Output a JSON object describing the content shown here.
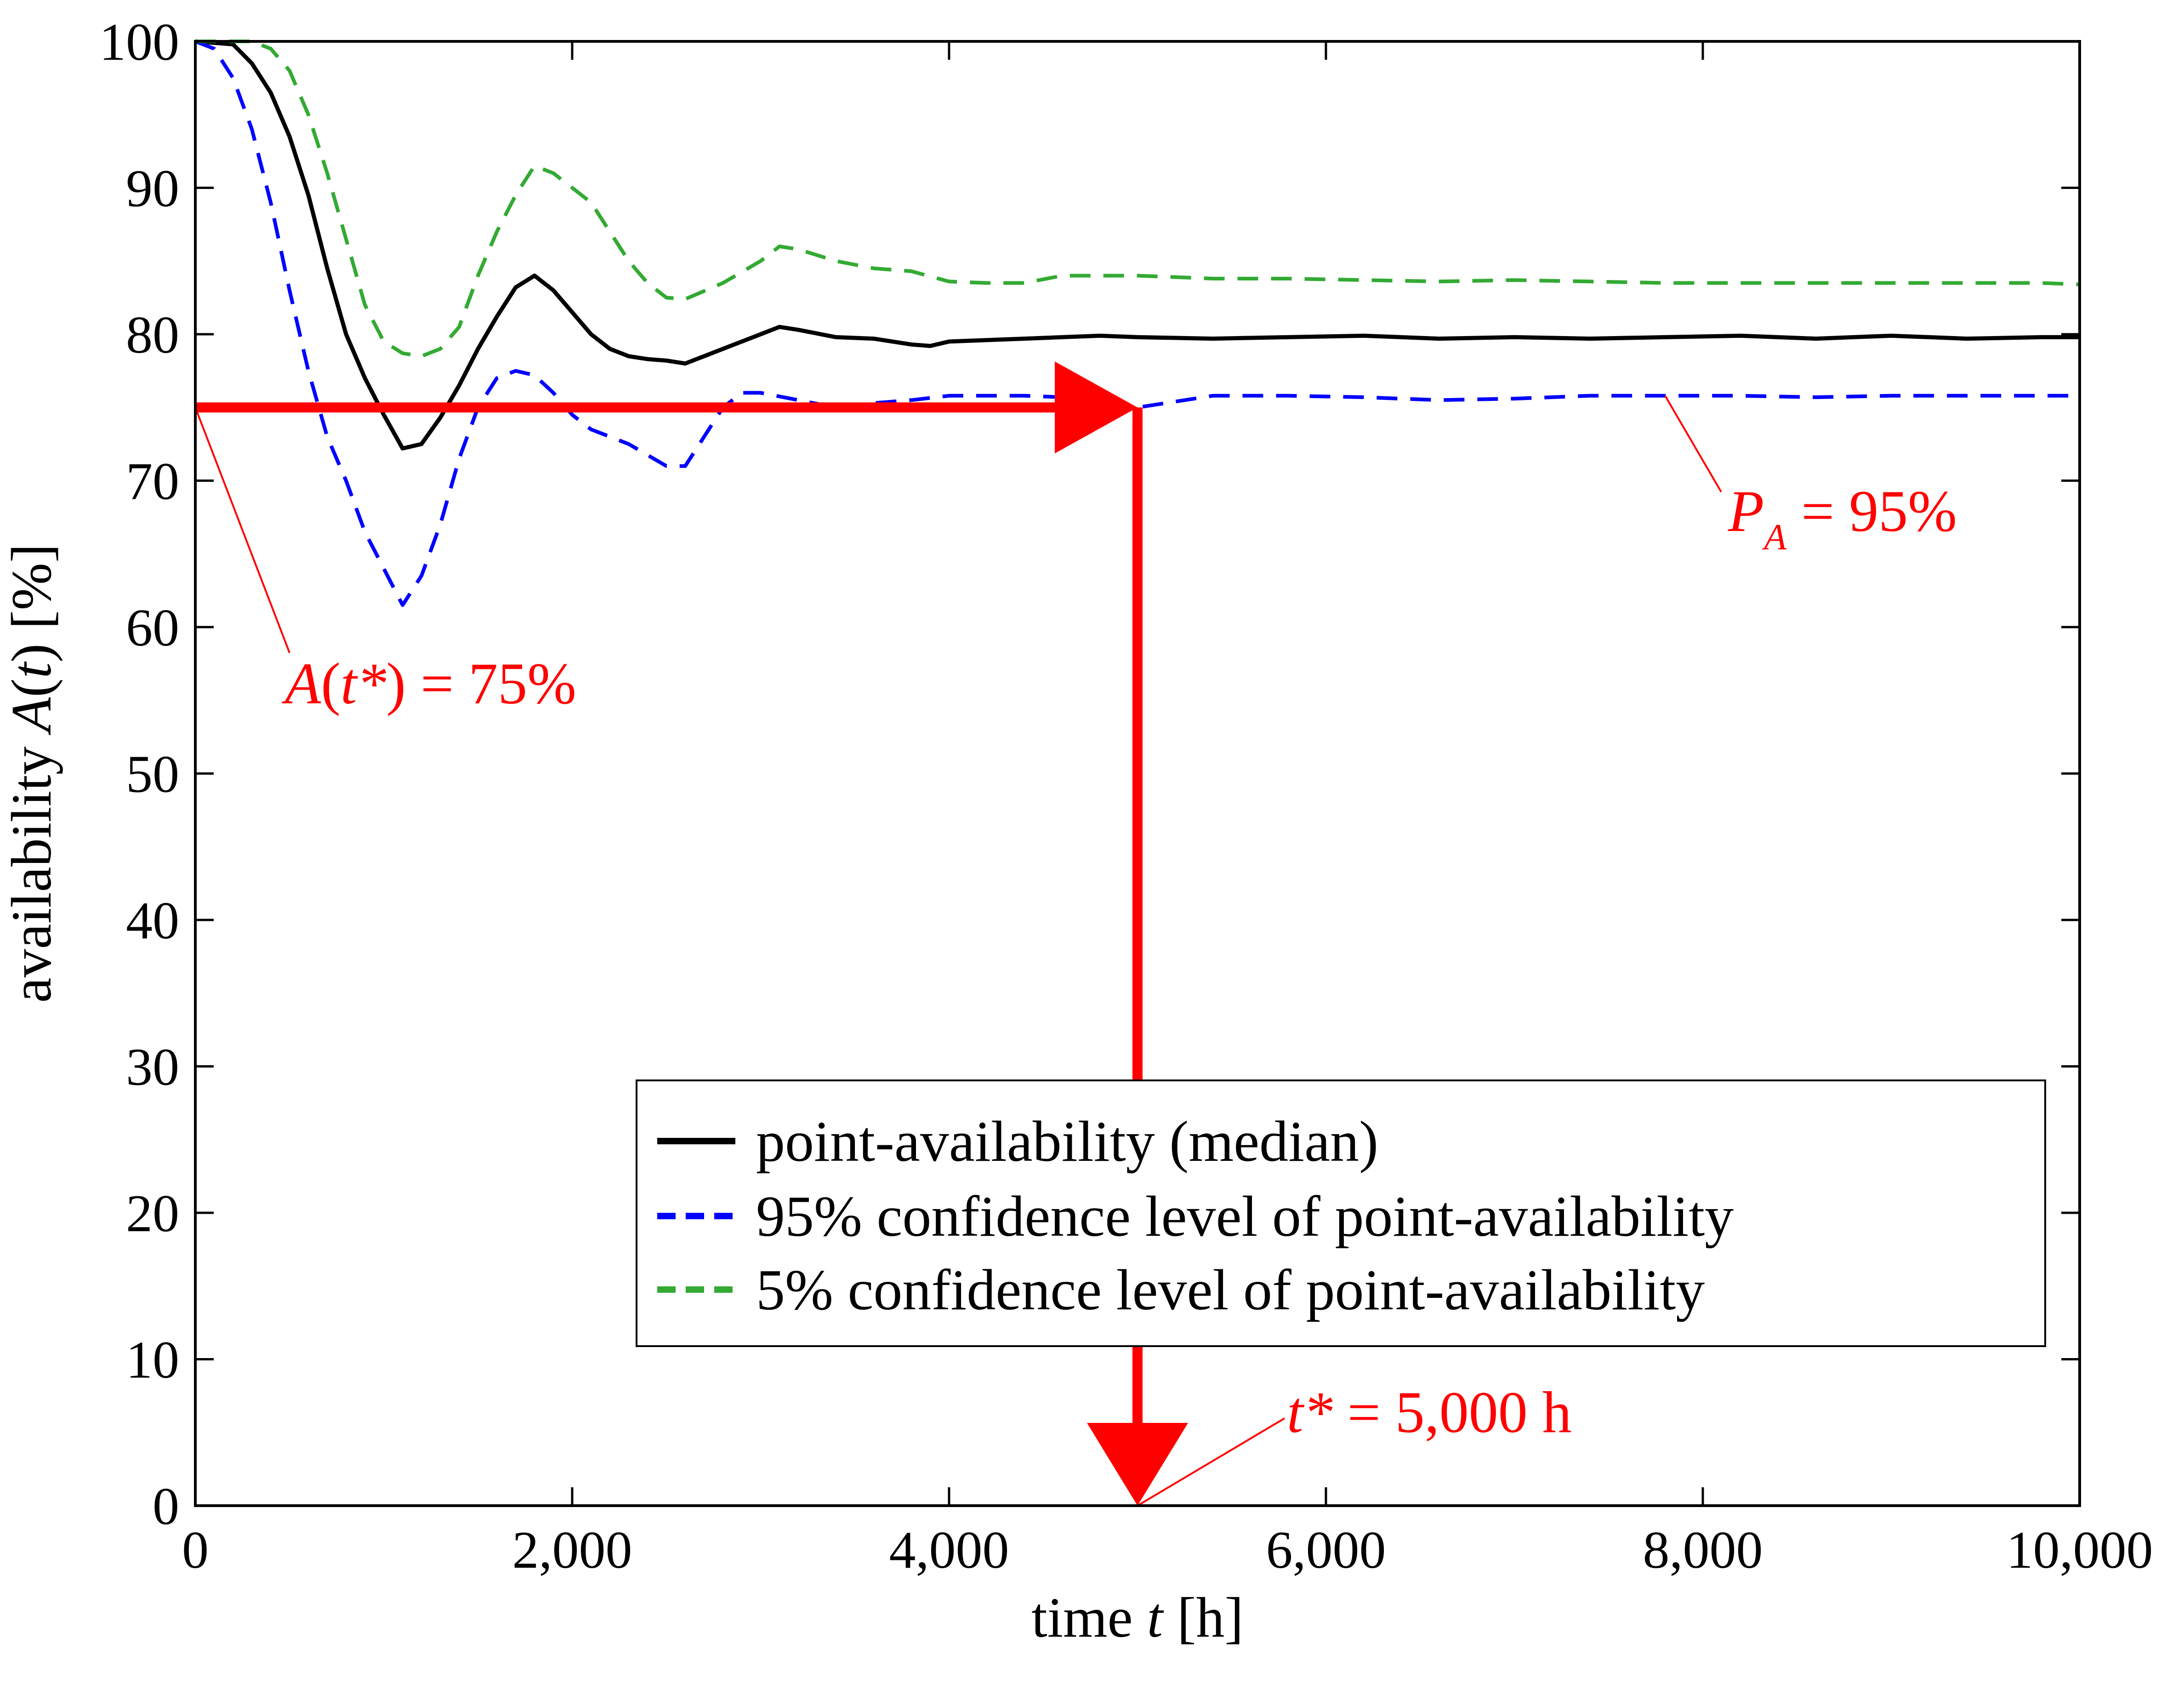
{
  "chart_data": {
    "type": "line",
    "xlabel": {
      "prefix": "time ",
      "var": "t",
      "suffix": " [h]"
    },
    "ylabel": {
      "prefix": "availability ",
      "var": "A",
      "open": "(",
      "arg": "t",
      "close": ")",
      "suffix": " [%]"
    },
    "xlim": [
      0,
      10000
    ],
    "ylim": [
      0,
      100
    ],
    "xticks": [
      0,
      2000,
      4000,
      6000,
      8000,
      10000
    ],
    "xtick_labels": [
      "0",
      "2,000",
      "4,000",
      "6,000",
      "8,000",
      "10,000"
    ],
    "yticks": [
      0,
      10,
      20,
      30,
      40,
      50,
      60,
      70,
      80,
      90,
      100
    ],
    "ytick_labels": [
      "0",
      "10",
      "20",
      "30",
      "40",
      "50",
      "60",
      "70",
      "80",
      "90",
      "100"
    ],
    "grid": false,
    "legend": {
      "placement": "lower-right",
      "entries": [
        {
          "label": "point-availability (median)",
          "color": "#000000",
          "dash": "solid"
        },
        {
          "label": "95% confidence level of point-availability",
          "color": "#0000ff",
          "dash": "dashed"
        },
        {
          "label": "5% confidence level of point-availability",
          "color": "#33aa33",
          "dash": "dashed"
        }
      ]
    },
    "series": [
      {
        "name": "point-availability (median)",
        "color": "#000000",
        "x": [
          0,
          200,
          300,
          400,
          500,
          600,
          700,
          800,
          900,
          1000,
          1100,
          1200,
          1300,
          1400,
          1500,
          1600,
          1700,
          1800,
          1900,
          2000,
          2100,
          2200,
          2300,
          2400,
          2500,
          2600,
          2800,
          3000,
          3100,
          3200,
          3400,
          3600,
          3800,
          3900,
          4000,
          4200,
          4400,
          4600,
          4800,
          5000,
          5400,
          5800,
          6200,
          6600,
          7000,
          7400,
          7800,
          8200,
          8600,
          9000,
          9400,
          9800,
          10000
        ],
        "y": [
          100,
          99.8,
          98.5,
          96.5,
          93.5,
          89.5,
          84.5,
          80,
          77,
          74.5,
          72.2,
          72.5,
          74.3,
          76.5,
          79,
          81.2,
          83.2,
          84,
          83,
          81.5,
          80,
          79,
          78.5,
          78.3,
          78.2,
          78,
          79,
          80,
          80.5,
          80.3,
          79.8,
          79.7,
          79.3,
          79.2,
          79.5,
          79.6,
          79.7,
          79.8,
          79.9,
          79.8,
          79.7,
          79.8,
          79.9,
          79.7,
          79.8,
          79.7,
          79.8,
          79.9,
          79.7,
          79.9,
          79.7,
          79.8,
          79.8
        ]
      },
      {
        "name": "95% confidence level of point-availability",
        "color": "#0000ff",
        "x": [
          0,
          100,
          200,
          300,
          400,
          500,
          600,
          700,
          800,
          900,
          1000,
          1100,
          1200,
          1300,
          1400,
          1500,
          1600,
          1700,
          1800,
          1900,
          2000,
          2100,
          2300,
          2500,
          2600,
          2700,
          2800,
          2900,
          3000,
          3200,
          3400,
          3600,
          3800,
          4000,
          4200,
          4400,
          4600,
          4800,
          5000,
          5400,
          5800,
          6200,
          6600,
          7000,
          7400,
          7800,
          8200,
          8600,
          9000,
          9400,
          9800,
          10000
        ],
        "y": [
          100,
          99.5,
          97.5,
          94,
          89,
          83,
          77.5,
          73,
          70,
          66.5,
          64,
          61.5,
          63.5,
          67,
          71.5,
          75,
          77,
          77.5,
          77.2,
          76,
          74.5,
          73.5,
          72.5,
          71,
          71,
          73,
          75,
          76,
          76,
          75.5,
          75,
          75.3,
          75.5,
          75.8,
          75.8,
          75.8,
          75.7,
          75.6,
          75,
          75.8,
          75.8,
          75.7,
          75.5,
          75.6,
          75.8,
          75.8,
          75.8,
          75.7,
          75.8,
          75.8,
          75.8,
          75.8
        ]
      },
      {
        "name": "5% confidence level of point-availability",
        "color": "#33aa33",
        "x": [
          0,
          100,
          200,
          300,
          400,
          500,
          600,
          700,
          800,
          900,
          1000,
          1100,
          1200,
          1300,
          1400,
          1500,
          1600,
          1700,
          1800,
          1900,
          2000,
          2100,
          2200,
          2300,
          2400,
          2500,
          2600,
          2800,
          3000,
          3100,
          3200,
          3400,
          3600,
          3800,
          4000,
          4200,
          4400,
          4600,
          4800,
          5000,
          5400,
          5800,
          6200,
          6600,
          7000,
          7400,
          7800,
          8200,
          8600,
          9000,
          9400,
          9800,
          10000
        ],
        "y": [
          100,
          100,
          100,
          100,
          99.5,
          98,
          95,
          91,
          86.5,
          82,
          79.5,
          78.7,
          78.5,
          79,
          80.5,
          84,
          87,
          89.5,
          91.5,
          91,
          90,
          89,
          87,
          85,
          83.5,
          82.5,
          82.4,
          83.5,
          85,
          86,
          85.8,
          85,
          84.5,
          84.3,
          83.6,
          83.5,
          83.5,
          84,
          84,
          84,
          83.8,
          83.8,
          83.7,
          83.6,
          83.7,
          83.6,
          83.5,
          83.5,
          83.5,
          83.5,
          83.5,
          83.5,
          83.4
        ]
      }
    ],
    "annotations": {
      "a_tstar": {
        "var": "A",
        "open": "(",
        "arg": "t*",
        "close": ")",
        "text": " = 75%",
        "x": 0,
        "y": 75
      },
      "p_a": {
        "var": "P",
        "sub": "A",
        "text": " = 95%",
        "x": 7800,
        "y": 75.8
      },
      "t_star": {
        "var": "t*",
        "text": " = 5,000 h",
        "x": 5000,
        "y": 0
      },
      "color": "#ff0000"
    }
  }
}
